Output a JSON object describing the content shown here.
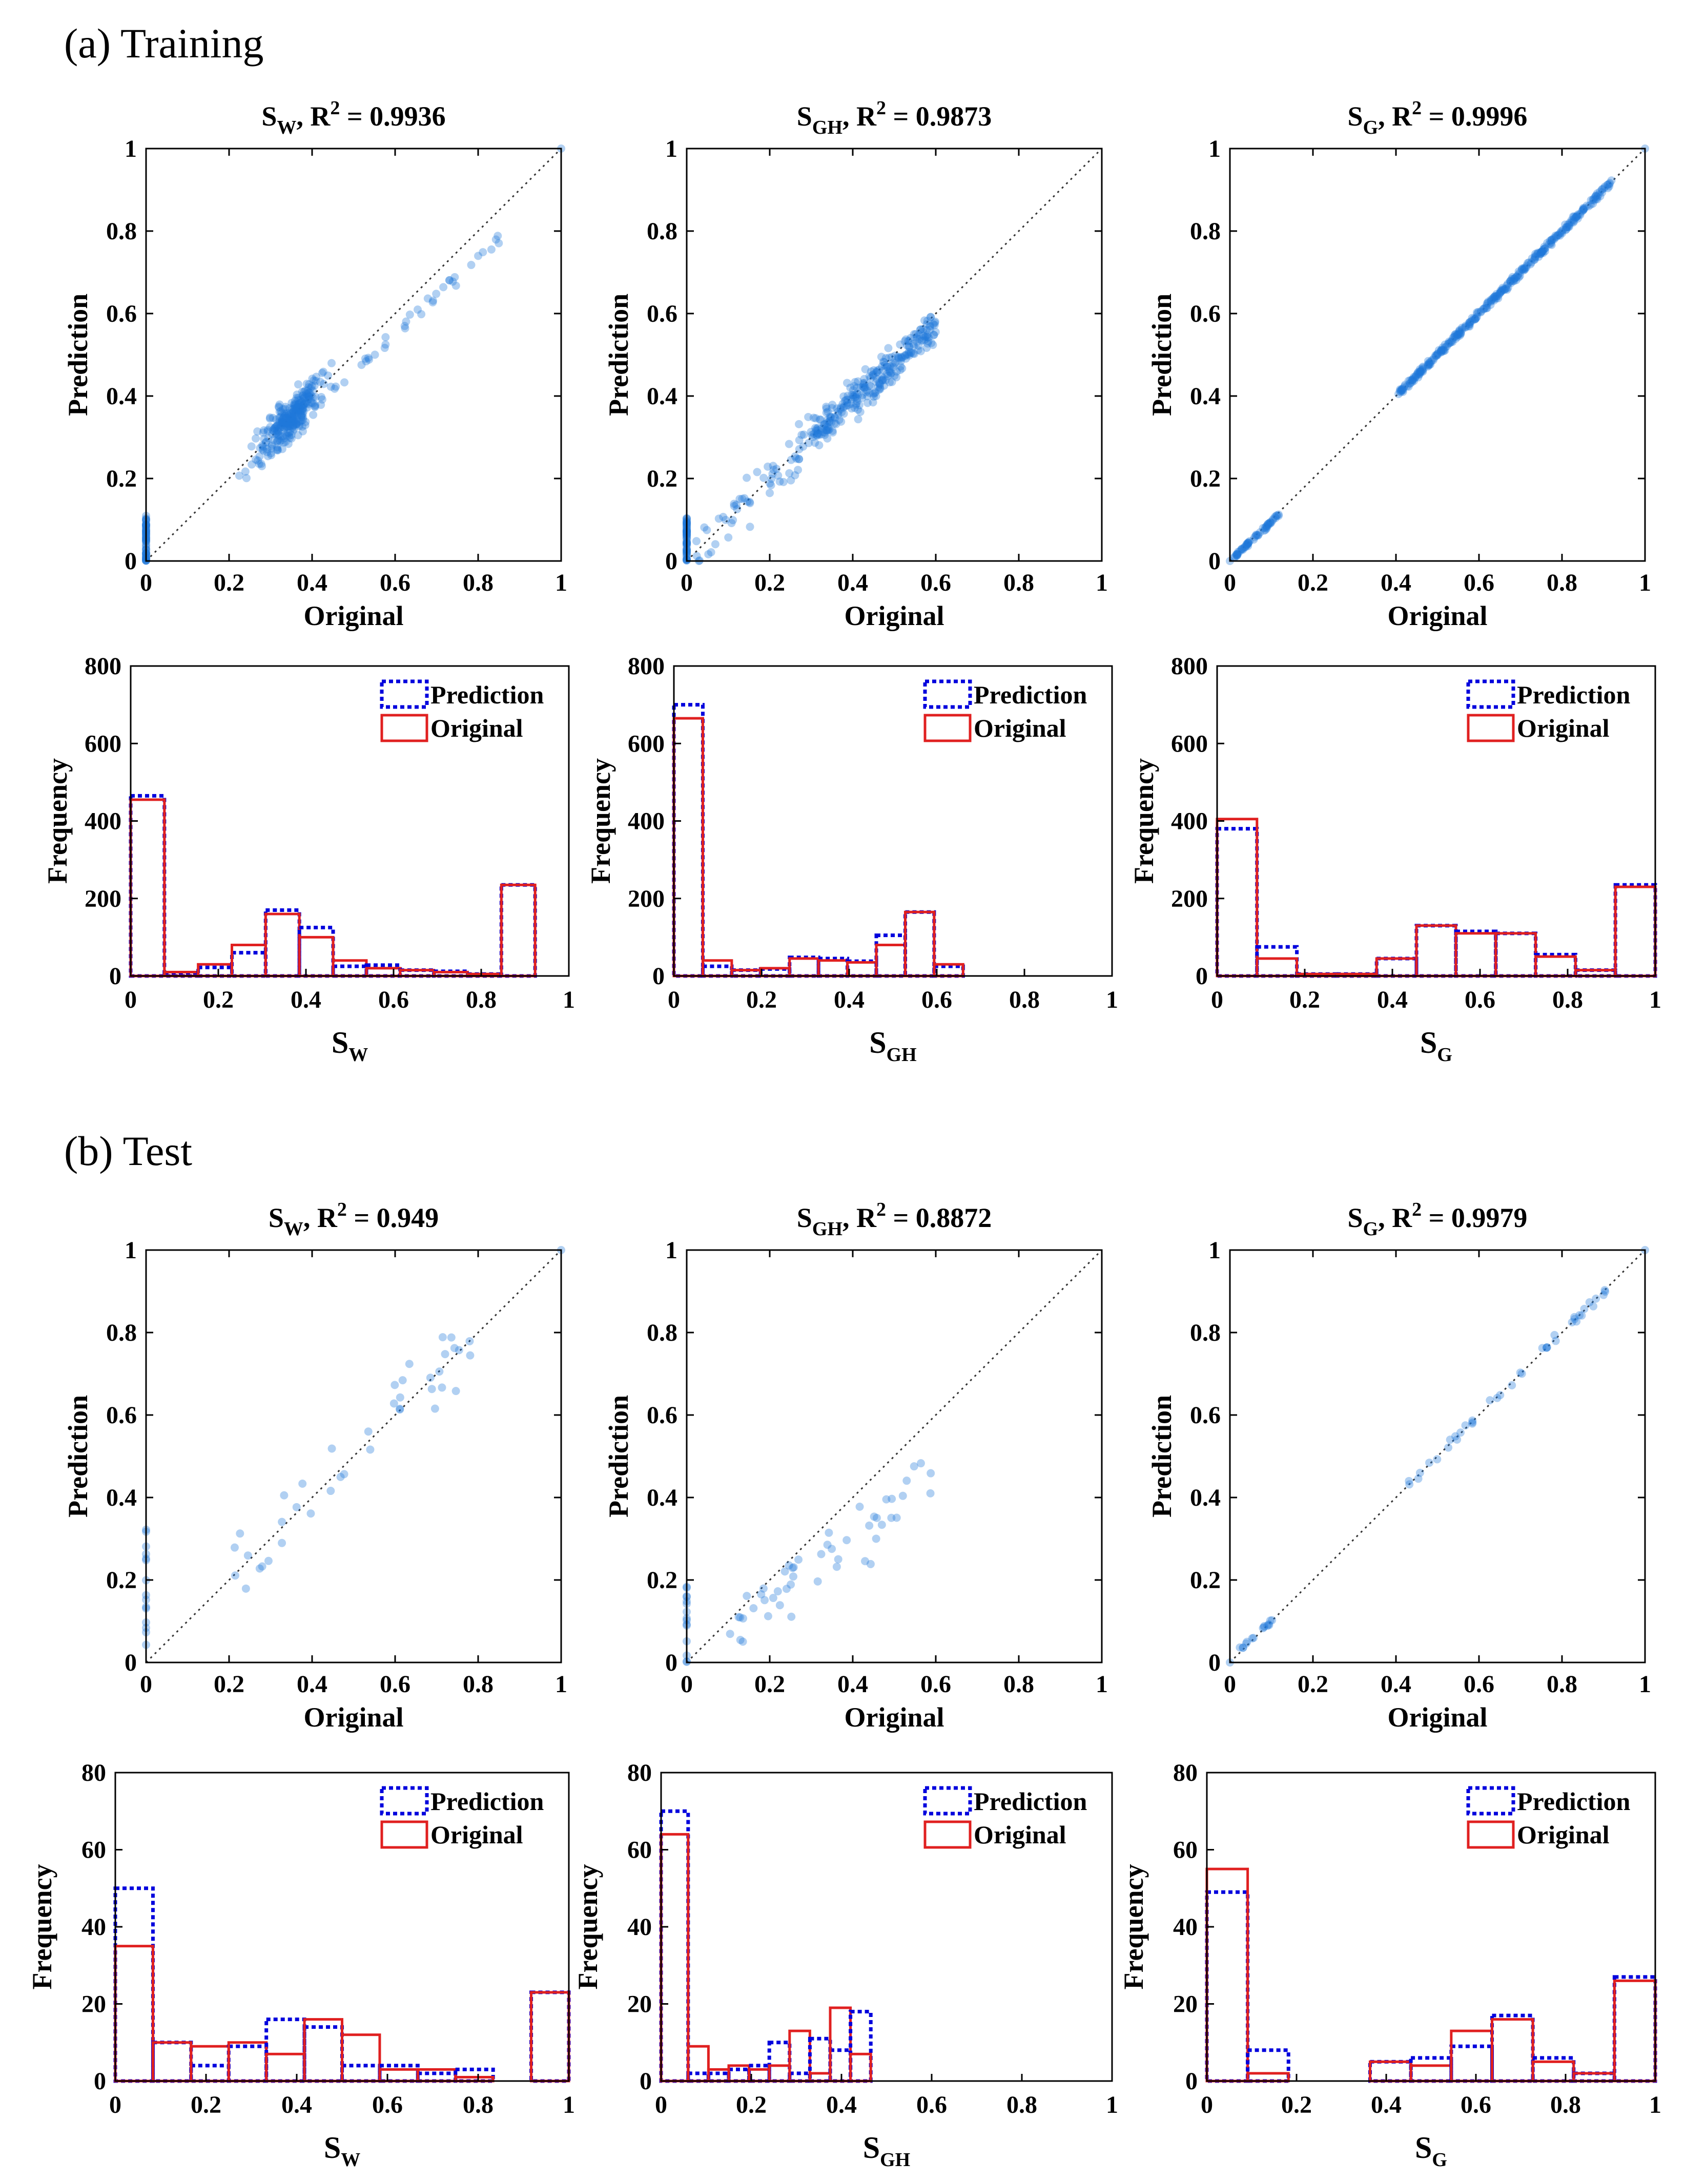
{
  "sections": [
    {
      "label": "(a) Training"
    },
    {
      "label": "(b) Test"
    }
  ],
  "colors": {
    "scatter": "#1f77d9",
    "prediction": "#0000dd",
    "original": "#e02020",
    "diag": "#333333"
  },
  "chart_data": [
    {
      "id": "train-sw-scatter",
      "type": "scatter",
      "section": 0,
      "title_var": "S",
      "title_sub": "W",
      "title_rest": ", R",
      "title_sup": "2",
      "title_value": " = 0.9936",
      "xlabel": "Original",
      "ylabel": "Prediction",
      "xlim": [
        0,
        1
      ],
      "ylim": [
        0,
        1
      ],
      "xticks": [
        "0",
        "0.2",
        "0.4",
        "0.6",
        "0.8",
        "1"
      ],
      "yticks": [
        "0",
        "0.2",
        "0.4",
        "0.6",
        "0.8",
        "1"
      ],
      "points": {
        "gen": "train_sw"
      }
    },
    {
      "id": "train-sgh-scatter",
      "type": "scatter",
      "section": 0,
      "title_var": "S",
      "title_sub": "GH",
      "title_rest": ", R",
      "title_sup": "2",
      "title_value": " = 0.9873",
      "xlabel": "Original",
      "ylabel": "Prediction",
      "xlim": [
        0,
        1
      ],
      "ylim": [
        0,
        1
      ],
      "xticks": [
        "0",
        "0.2",
        "0.4",
        "0.6",
        "0.8",
        "1"
      ],
      "yticks": [
        "0",
        "0.2",
        "0.4",
        "0.6",
        "0.8",
        "1"
      ],
      "points": {
        "gen": "train_sgh"
      }
    },
    {
      "id": "train-sg-scatter",
      "type": "scatter",
      "section": 0,
      "title_var": "S",
      "title_sub": "G",
      "title_rest": ", R",
      "title_sup": "2",
      "title_value": " = 0.9996",
      "xlabel": "Original",
      "ylabel": "Prediction",
      "xlim": [
        0,
        1
      ],
      "ylim": [
        0,
        1
      ],
      "xticks": [
        "0",
        "0.2",
        "0.4",
        "0.6",
        "0.8",
        "1"
      ],
      "yticks": [
        "0",
        "0.2",
        "0.4",
        "0.6",
        "0.8",
        "1"
      ],
      "points": {
        "gen": "train_sg"
      }
    },
    {
      "id": "train-sw-hist",
      "type": "bar",
      "section": 0,
      "xlabel_var": "S",
      "xlabel_sub": "W",
      "ylabel": "Frequency",
      "xlim": [
        0,
        1
      ],
      "ylim": [
        0,
        800
      ],
      "xticks": [
        "0",
        "0.2",
        "0.4",
        "0.6",
        "0.8",
        "1"
      ],
      "yticks": [
        "0",
        "200",
        "400",
        "600",
        "800"
      ],
      "bin_width": 0.1,
      "legend": [
        "Prediction",
        "Original"
      ],
      "prediction": [
        465,
        8,
        22,
        60,
        170,
        125,
        25,
        28,
        15,
        12,
        5,
        235
      ],
      "original": [
        455,
        10,
        30,
        80,
        160,
        100,
        40,
        20,
        15,
        10,
        5,
        235
      ],
      "bins": [
        0,
        0.077,
        0.154,
        0.231,
        0.308,
        0.385,
        0.462,
        0.538,
        0.615,
        0.692,
        0.769,
        0.846,
        0.923
      ]
    },
    {
      "id": "train-sgh-hist",
      "type": "bar",
      "section": 0,
      "xlabel_var": "S",
      "xlabel_sub": "GH",
      "ylabel": "Frequency",
      "xlim": [
        0,
        1
      ],
      "ylim": [
        0,
        800
      ],
      "xticks": [
        "0",
        "0.2",
        "0.4",
        "0.6",
        "0.8",
        "1"
      ],
      "yticks": [
        "0",
        "200",
        "400",
        "600",
        "800"
      ],
      "legend": [
        "Prediction",
        "Original"
      ],
      "prediction": [
        700,
        25,
        15,
        18,
        48,
        45,
        38,
        105,
        165,
        25
      ],
      "original": [
        665,
        40,
        15,
        20,
        45,
        40,
        35,
        80,
        165,
        30
      ],
      "bins": [
        0,
        0.066,
        0.132,
        0.198,
        0.264,
        0.33,
        0.396,
        0.462,
        0.528,
        0.594,
        0.66
      ]
    },
    {
      "id": "train-sg-hist",
      "type": "bar",
      "section": 0,
      "xlabel_var": "S",
      "xlabel_sub": "G",
      "ylabel": "Frequency",
      "xlim": [
        0,
        1
      ],
      "ylim": [
        0,
        800
      ],
      "xticks": [
        "0",
        "0.2",
        "0.4",
        "0.6",
        "0.8",
        "1"
      ],
      "yticks": [
        "0",
        "200",
        "400",
        "600",
        "800"
      ],
      "legend": [
        "Prediction",
        "Original"
      ],
      "prediction": [
        380,
        75,
        5,
        5,
        45,
        130,
        115,
        110,
        55,
        15,
        235
      ],
      "original": [
        405,
        45,
        5,
        5,
        45,
        130,
        110,
        110,
        50,
        15,
        230
      ],
      "bins": [
        0,
        0.091,
        0.182,
        0.273,
        0.364,
        0.455,
        0.545,
        0.636,
        0.727,
        0.818,
        0.909,
        1
      ]
    },
    {
      "id": "test-sw-scatter",
      "type": "scatter",
      "section": 1,
      "title_var": "S",
      "title_sub": "W",
      "title_rest": ", R",
      "title_sup": "2",
      "title_value": " = 0.949",
      "xlabel": "Original",
      "ylabel": "Prediction",
      "xlim": [
        0,
        1
      ],
      "ylim": [
        0,
        1
      ],
      "xticks": [
        "0",
        "0.2",
        "0.4",
        "0.6",
        "0.8",
        "1"
      ],
      "yticks": [
        "0",
        "0.2",
        "0.4",
        "0.6",
        "0.8",
        "1"
      ],
      "points": {
        "gen": "test_sw"
      }
    },
    {
      "id": "test-sgh-scatter",
      "type": "scatter",
      "section": 1,
      "title_var": "S",
      "title_sub": "GH",
      "title_rest": ", R",
      "title_sup": "2",
      "title_value": " = 0.8872",
      "xlabel": "Original",
      "ylabel": "Prediction",
      "xlim": [
        0,
        1
      ],
      "ylim": [
        0,
        1
      ],
      "xticks": [
        "0",
        "0.2",
        "0.4",
        "0.6",
        "0.8",
        "1"
      ],
      "yticks": [
        "0",
        "0.2",
        "0.4",
        "0.6",
        "0.8",
        "1"
      ],
      "points": {
        "gen": "test_sgh"
      }
    },
    {
      "id": "test-sg-scatter",
      "type": "scatter",
      "section": 1,
      "title_var": "S",
      "title_sub": "G",
      "title_rest": ", R",
      "title_sup": "2",
      "title_value": " = 0.9979",
      "xlabel": "Original",
      "ylabel": "Prediction",
      "xlim": [
        0,
        1
      ],
      "ylim": [
        0,
        1
      ],
      "xticks": [
        "0",
        "0.2",
        "0.4",
        "0.6",
        "0.8",
        "1"
      ],
      "yticks": [
        "0",
        "0.2",
        "0.4",
        "0.6",
        "0.8",
        "1"
      ],
      "points": {
        "gen": "test_sg"
      }
    },
    {
      "id": "test-sw-hist",
      "type": "bar",
      "section": 1,
      "xlabel_var": "S",
      "xlabel_sub": "W",
      "ylabel": "Frequency",
      "xlim": [
        0,
        1
      ],
      "ylim": [
        0,
        80
      ],
      "xticks": [
        "0",
        "0.2",
        "0.4",
        "0.6",
        "0.8",
        "1"
      ],
      "yticks": [
        "0",
        "20",
        "40",
        "60",
        "80"
      ],
      "legend": [
        "Prediction",
        "Original"
      ],
      "prediction": [
        50,
        10,
        4,
        9,
        16,
        14,
        4,
        4,
        2,
        3,
        0,
        23
      ],
      "original": [
        35,
        10,
        9,
        10,
        7,
        16,
        12,
        3,
        3,
        1,
        0,
        23
      ],
      "bins": [
        0,
        0.083,
        0.167,
        0.25,
        0.333,
        0.417,
        0.5,
        0.583,
        0.667,
        0.75,
        0.833,
        0.917,
        1
      ]
    },
    {
      "id": "test-sgh-hist",
      "type": "bar",
      "section": 1,
      "xlabel_var": "S",
      "xlabel_sub": "GH",
      "ylabel": "Frequency",
      "xlim": [
        0,
        1
      ],
      "ylim": [
        0,
        80
      ],
      "xticks": [
        "0",
        "0.2",
        "0.4",
        "0.6",
        "0.8",
        "1"
      ],
      "yticks": [
        "0",
        "20",
        "40",
        "60",
        "80"
      ],
      "legend": [
        "Prediction",
        "Original"
      ],
      "prediction": [
        70,
        2,
        2,
        3,
        4,
        10,
        2,
        11,
        8,
        18
      ],
      "original": [
        64,
        9,
        3,
        4,
        3,
        4,
        13,
        2,
        19,
        7
      ],
      "bins": [
        0,
        0.06,
        0.105,
        0.15,
        0.195,
        0.24,
        0.285,
        0.33,
        0.375,
        0.42,
        0.465,
        0.51,
        0.555,
        0.6
      ]
    },
    {
      "id": "test-sg-hist",
      "type": "bar",
      "section": 1,
      "xlabel_var": "S",
      "xlabel_sub": "G",
      "ylabel": "Frequency",
      "xlim": [
        0,
        1
      ],
      "ylim": [
        0,
        80
      ],
      "xticks": [
        "0",
        "0.2",
        "0.4",
        "0.6",
        "0.8",
        "1"
      ],
      "yticks": [
        "0",
        "20",
        "40",
        "60",
        "80"
      ],
      "legend": [
        "Prediction",
        "Original"
      ],
      "prediction": [
        49,
        8,
        0,
        0,
        5,
        6,
        9,
        17,
        6,
        2,
        27
      ],
      "original": [
        55,
        2,
        0,
        0,
        5,
        4,
        13,
        16,
        5,
        2,
        26
      ],
      "bins": [
        0,
        0.091,
        0.182,
        0.273,
        0.364,
        0.455,
        0.545,
        0.636,
        0.727,
        0.818,
        0.909,
        1
      ]
    }
  ]
}
